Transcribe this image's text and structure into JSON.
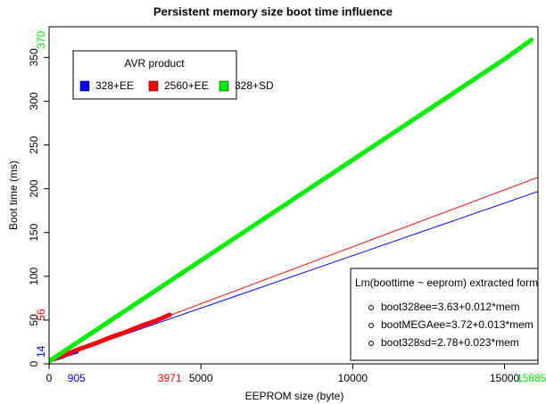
{
  "chart_data": {
    "type": "scatter",
    "title": "Persistent memory size boot time influence",
    "x_label": "EEPROM size (byte)",
    "y_label": "Boot time (ms)",
    "xlim": [
      0,
      16100
    ],
    "ylim": [
      0,
      385
    ],
    "xticks": [
      0,
      5000,
      10000,
      15000
    ],
    "yticks": [
      0,
      50,
      100,
      150,
      200,
      250,
      300,
      350
    ],
    "legend_title": "AVR product",
    "series": [
      {
        "name": "328+EE",
        "color": "#0000ff",
        "x": [
          0,
          200,
          400,
          600,
          800,
          905
        ],
        "values": [
          4,
          6,
          8,
          11,
          13,
          14
        ],
        "x_max": 905,
        "y_max": 14
      },
      {
        "name": "2560+EE",
        "color": "#ff0000",
        "x": [
          0,
          500,
          1000,
          1500,
          2000,
          2500,
          3000,
          3500,
          3971
        ],
        "values": [
          4,
          10,
          17,
          23,
          30,
          36,
          43,
          49,
          56
        ],
        "x_max": 3971,
        "y_max": 56
      },
      {
        "name": "328+SD",
        "color": "#00ee00",
        "x": [
          0,
          1000,
          2000,
          3000,
          4000,
          5000,
          6000,
          7000,
          8000,
          9000,
          10000,
          11000,
          12000,
          13000,
          14000,
          15000,
          15885
        ],
        "values": [
          3,
          26,
          49,
          72,
          95,
          118,
          141,
          164,
          187,
          210,
          233,
          256,
          279,
          302,
          325,
          348,
          370
        ],
        "x_max": 15885,
        "y_max": 370
      }
    ],
    "fit_title": "Lm(boottime ~ eeprom) extracted formu",
    "fits": [
      {
        "label": "boot328ee=3.63+0.012*mem",
        "color": "#0000ff",
        "intercept": 3.63,
        "slope": 0.012
      },
      {
        "label": "bootMEGAee=3.72+0.013*mem",
        "color": "#ff0000",
        "intercept": 3.72,
        "slope": 0.013
      },
      {
        "label": "boot328sd=2.78+0.023*mem",
        "color": null,
        "intercept": 2.78,
        "slope": 0.023
      }
    ]
  }
}
